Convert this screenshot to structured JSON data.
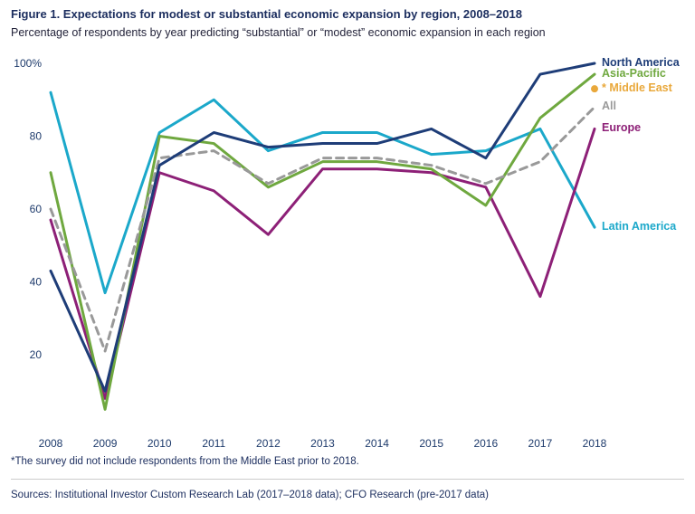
{
  "chart_data": {
    "type": "line",
    "title": "Figure 1. Expectations for modest or substantial economic expansion by region, 2008–2018",
    "subtitle": "Percentage of respondents by year predicting “substantial” or “modest” economic expansion in each region",
    "x": [
      2008,
      2009,
      2010,
      2011,
      2012,
      2013,
      2014,
      2015,
      2016,
      2017,
      2018
    ],
    "xlabel": "",
    "ylabel": "",
    "ylim": [
      0,
      100
    ],
    "grid": false,
    "legend_position": "right",
    "yticks": [
      {
        "value": 20,
        "label": "20"
      },
      {
        "value": 40,
        "label": "40"
      },
      {
        "value": 60,
        "label": "60"
      },
      {
        "value": 80,
        "label": "80"
      },
      {
        "value": 100,
        "label": "100%"
      }
    ],
    "series": [
      {
        "name": "North America",
        "color": "#1e3d78",
        "style": "solid",
        "values": [
          43,
          10,
          72,
          81,
          77,
          78,
          78,
          82,
          74,
          97,
          100
        ]
      },
      {
        "name": "Asia-Pacific",
        "color": "#6fa83f",
        "style": "solid",
        "values": [
          70,
          5,
          80,
          78,
          66,
          73,
          73,
          71,
          61,
          85,
          97
        ]
      },
      {
        "name": "Middle East",
        "color": "#e9a83b",
        "style": "point",
        "legend_prefix": "*",
        "values": [
          null,
          null,
          null,
          null,
          null,
          null,
          null,
          null,
          null,
          null,
          93
        ]
      },
      {
        "name": "All",
        "color": "#999999",
        "style": "dashed",
        "values": [
          60,
          21,
          74,
          76,
          67,
          74,
          74,
          72,
          67,
          73,
          88
        ]
      },
      {
        "name": "Europe",
        "color": "#8d2077",
        "style": "solid",
        "values": [
          57,
          8,
          70,
          65,
          53,
          71,
          71,
          70,
          66,
          36,
          82
        ]
      },
      {
        "name": "Latin America",
        "color": "#1ba8ca",
        "style": "solid",
        "values": [
          92,
          37,
          81,
          90,
          76,
          81,
          81,
          75,
          76,
          82,
          55
        ]
      }
    ]
  },
  "footnote": "*The survey did not include respondents from the Middle East prior to 2018.",
  "sources": "Sources: Institutional Investor Custom Research Lab (2017–2018 data); CFO Research (pre-2017 data)"
}
